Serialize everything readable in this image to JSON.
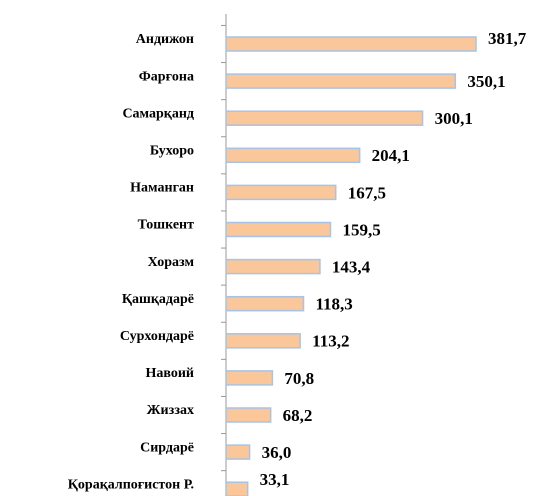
{
  "chart_data": {
    "type": "bar",
    "orientation": "horizontal",
    "categories": [
      "Андижон",
      "Фарғона",
      "Самарқанд",
      "Бухоро",
      "Наманган",
      "Тошкент",
      "Хоразм",
      "Қашқадарё",
      "Сурхондарё",
      "Навоий",
      "Жиззах",
      "Сирдарё",
      "Қорақалпоғистон Р."
    ],
    "values": [
      381.7,
      350.1,
      300.1,
      204.1,
      167.5,
      159.5,
      143.4,
      118.3,
      113.2,
      70.8,
      68.2,
      36.0,
      33.1
    ],
    "value_labels": [
      "381,7",
      "350,1",
      "300,1",
      "204,1",
      "167,5",
      "159,5",
      "143,4",
      "118,3",
      "113,2",
      "70,8",
      "68,2",
      "36,0",
      "33,1"
    ],
    "color": "#f9c79a",
    "edge_color": "#a8c3e6",
    "xlim": [
      0,
      400
    ]
  }
}
